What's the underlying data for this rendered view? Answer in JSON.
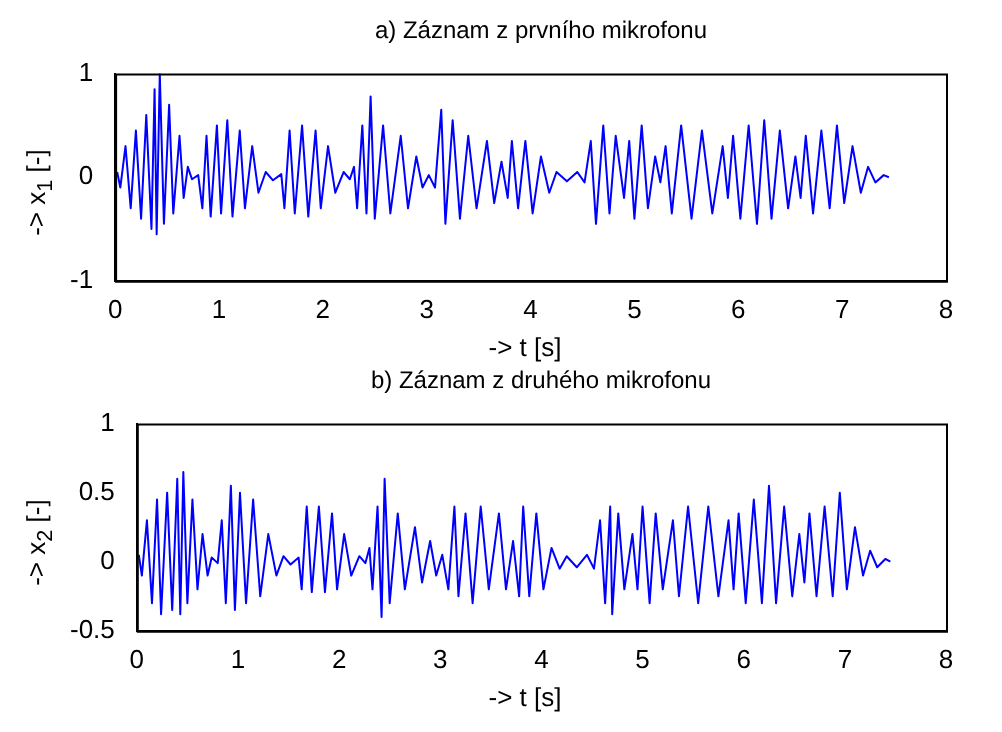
{
  "chart_data": [
    {
      "type": "line",
      "title": "a) Záznam z prvního mikrofonu",
      "xlabel": "-> t [s]",
      "ylabel": "-> x$_{1}$ [-]",
      "color": "#0000ff",
      "marker": "none",
      "grid": false,
      "xlim": [
        0,
        8
      ],
      "xticks": [
        0,
        1,
        2,
        3,
        4,
        5,
        6,
        7,
        8
      ],
      "ylim": [
        -1,
        1
      ],
      "yticks": [
        -1,
        0,
        1
      ],
      "x": [
        0.02,
        0.05,
        0.1,
        0.15,
        0.2,
        0.25,
        0.3,
        0.35,
        0.38,
        0.4,
        0.43,
        0.47,
        0.52,
        0.56,
        0.62,
        0.66,
        0.7,
        0.74,
        0.8,
        0.84,
        0.88,
        0.92,
        0.98,
        1.02,
        1.08,
        1.13,
        1.2,
        1.25,
        1.32,
        1.38,
        1.45,
        1.52,
        1.6,
        1.63,
        1.68,
        1.73,
        1.8,
        1.86,
        1.93,
        1.98,
        2.05,
        2.12,
        2.2,
        2.26,
        2.3,
        2.33,
        2.38,
        2.42,
        2.46,
        2.5,
        2.58,
        2.65,
        2.75,
        2.82,
        2.9,
        2.96,
        3.02,
        3.08,
        3.14,
        3.18,
        3.25,
        3.32,
        3.4,
        3.48,
        3.58,
        3.65,
        3.72,
        3.78,
        3.82,
        3.88,
        3.95,
        4.02,
        4.1,
        4.18,
        4.25,
        4.35,
        4.45,
        4.52,
        4.58,
        4.63,
        4.7,
        4.76,
        4.82,
        4.9,
        4.95,
        5.0,
        5.07,
        5.13,
        5.2,
        5.25,
        5.3,
        5.36,
        5.45,
        5.55,
        5.65,
        5.75,
        5.85,
        5.9,
        5.95,
        6.02,
        6.1,
        6.18,
        6.25,
        6.32,
        6.4,
        6.48,
        6.55,
        6.6,
        6.65,
        6.72,
        6.8,
        6.88,
        6.95,
        7.02,
        7.1,
        7.18,
        7.25,
        7.32,
        7.4,
        7.45
      ],
      "values": [
        0.05,
        -0.1,
        0.3,
        -0.3,
        0.45,
        -0.4,
        0.6,
        -0.5,
        0.85,
        -0.55,
        1.0,
        -0.45,
        0.7,
        -0.35,
        0.4,
        -0.2,
        0.1,
        -0.02,
        0.02,
        -0.3,
        0.4,
        -0.38,
        0.5,
        -0.35,
        0.55,
        -0.38,
        0.45,
        -0.3,
        0.3,
        -0.15,
        0.05,
        -0.03,
        0.03,
        -0.3,
        0.45,
        -0.35,
        0.5,
        -0.38,
        0.45,
        -0.3,
        0.3,
        -0.15,
        0.05,
        -0.02,
        0.1,
        -0.3,
        0.5,
        -0.35,
        0.78,
        -0.4,
        0.5,
        -0.35,
        0.4,
        -0.3,
        0.2,
        -0.1,
        0.02,
        -0.1,
        0.65,
        -0.45,
        0.55,
        -0.4,
        0.4,
        -0.3,
        0.35,
        -0.25,
        0.15,
        -0.2,
        0.35,
        -0.3,
        0.35,
        -0.35,
        0.2,
        -0.15,
        0.05,
        -0.04,
        0.05,
        -0.05,
        0.35,
        -0.45,
        0.5,
        -0.35,
        0.4,
        -0.2,
        0.35,
        -0.4,
        0.5,
        -0.3,
        0.2,
        -0.05,
        0.3,
        -0.35,
        0.5,
        -0.4,
        0.45,
        -0.35,
        0.3,
        -0.2,
        0.4,
        -0.4,
        0.5,
        -0.45,
        0.55,
        -0.4,
        0.45,
        -0.3,
        0.2,
        -0.2,
        0.4,
        -0.35,
        0.45,
        -0.3,
        0.5,
        -0.25,
        0.3,
        -0.15,
        0.1,
        -0.05,
        0.02,
        0
      ]
    },
    {
      "type": "line",
      "title": "b) Záznam z druhého mikrofonu",
      "xlabel": "-> t [s]",
      "ylabel": "-> x$_{2}$ [-]",
      "color": "#0000ff",
      "marker": "none",
      "grid": false,
      "xlim": [
        0,
        8
      ],
      "xticks": [
        0,
        1,
        2,
        3,
        4,
        5,
        6,
        7,
        8
      ],
      "ylim": [
        -0.5,
        1
      ],
      "yticks": [
        -0.5,
        0,
        0.5,
        1
      ],
      "x": [
        0.02,
        0.05,
        0.1,
        0.15,
        0.2,
        0.24,
        0.3,
        0.35,
        0.4,
        0.43,
        0.46,
        0.5,
        0.55,
        0.6,
        0.65,
        0.7,
        0.74,
        0.8,
        0.84,
        0.88,
        0.93,
        0.97,
        1.02,
        1.08,
        1.15,
        1.22,
        1.3,
        1.38,
        1.45,
        1.52,
        1.6,
        1.63,
        1.68,
        1.73,
        1.8,
        1.86,
        1.93,
        1.98,
        2.05,
        2.12,
        2.2,
        2.26,
        2.3,
        2.33,
        2.38,
        2.42,
        2.45,
        2.5,
        2.58,
        2.65,
        2.75,
        2.82,
        2.9,
        2.96,
        3.02,
        3.08,
        3.14,
        3.18,
        3.25,
        3.32,
        3.4,
        3.48,
        3.58,
        3.65,
        3.72,
        3.78,
        3.82,
        3.88,
        3.95,
        4.02,
        4.1,
        4.18,
        4.25,
        4.35,
        4.45,
        4.52,
        4.58,
        4.63,
        4.68,
        4.7,
        4.76,
        4.82,
        4.9,
        4.95,
        5.0,
        5.07,
        5.13,
        5.2,
        5.25,
        5.3,
        5.36,
        5.45,
        5.55,
        5.65,
        5.75,
        5.85,
        5.9,
        5.95,
        6.02,
        6.1,
        6.18,
        6.25,
        6.32,
        6.4,
        6.48,
        6.55,
        6.6,
        6.65,
        6.72,
        6.8,
        6.88,
        6.95,
        7.02,
        7.1,
        7.18,
        7.25,
        7.32,
        7.4,
        7.45
      ],
      "values": [
        0.05,
        -0.1,
        0.3,
        -0.3,
        0.45,
        -0.38,
        0.5,
        -0.35,
        0.6,
        -0.38,
        0.65,
        -0.3,
        0.45,
        -0.2,
        0.2,
        -0.1,
        0.03,
        -0.01,
        0.3,
        -0.3,
        0.55,
        -0.35,
        0.5,
        -0.3,
        0.45,
        -0.25,
        0.2,
        -0.1,
        0.04,
        -0.02,
        0.03,
        -0.2,
        0.4,
        -0.22,
        0.4,
        -0.22,
        0.35,
        -0.2,
        0.2,
        -0.1,
        0.04,
        -0.01,
        0.1,
        -0.2,
        0.4,
        -0.4,
        0.6,
        -0.3,
        0.35,
        -0.2,
        0.25,
        -0.15,
        0.15,
        -0.1,
        0.05,
        -0.2,
        0.4,
        -0.25,
        0.35,
        -0.3,
        0.4,
        -0.2,
        0.35,
        -0.2,
        0.15,
        -0.25,
        0.4,
        -0.25,
        0.35,
        -0.2,
        0.1,
        -0.05,
        0.04,
        -0.04,
        0.05,
        -0.05,
        0.3,
        -0.3,
        0.4,
        -0.38,
        0.35,
        -0.2,
        0.2,
        -0.2,
        0.4,
        -0.3,
        0.35,
        -0.2,
        0.05,
        0.3,
        -0.25,
        0.4,
        -0.3,
        0.4,
        -0.25,
        0.3,
        -0.2,
        0.35,
        -0.3,
        0.45,
        -0.3,
        0.55,
        -0.3,
        0.4,
        -0.25,
        0.2,
        -0.15,
        0.35,
        -0.25,
        0.4,
        -0.25,
        0.5,
        -0.2,
        0.25,
        -0.1,
        0.08,
        -0.04,
        0.02,
        0
      ]
    }
  ]
}
